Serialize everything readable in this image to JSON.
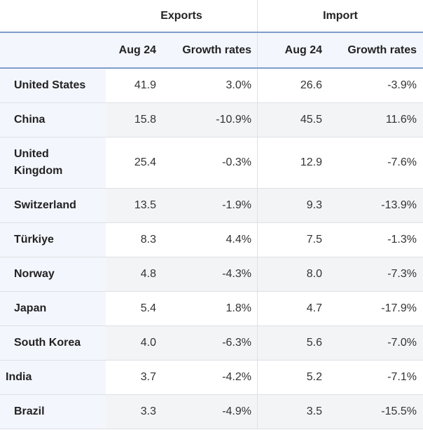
{
  "chart_data": {
    "type": "table",
    "column_groups": [
      "Exports",
      "Import"
    ],
    "columns": [
      "Aug 24",
      "Growth rates",
      "Aug 24",
      "Growth rates"
    ],
    "rows": [
      {
        "country": "United States",
        "exp_value": "41.9",
        "exp_growth": "3.0%",
        "imp_value": "26.6",
        "imp_growth": "-3.9%"
      },
      {
        "country": "China",
        "exp_value": "15.8",
        "exp_growth": "-10.9%",
        "imp_value": "45.5",
        "imp_growth": "11.6%"
      },
      {
        "country": "United Kingdom",
        "exp_value": "25.4",
        "exp_growth": "-0.3%",
        "imp_value": "12.9",
        "imp_growth": "-7.6%"
      },
      {
        "country": "Switzerland",
        "exp_value": "13.5",
        "exp_growth": "-1.9%",
        "imp_value": "9.3",
        "imp_growth": "-13.9%"
      },
      {
        "country": "Türkiye",
        "exp_value": "8.3",
        "exp_growth": "4.4%",
        "imp_value": "7.5",
        "imp_growth": "-1.3%"
      },
      {
        "country": "Norway",
        "exp_value": "4.8",
        "exp_growth": "-4.3%",
        "imp_value": "8.0",
        "imp_growth": "-7.3%"
      },
      {
        "country": "Japan",
        "exp_value": "5.4",
        "exp_growth": "1.8%",
        "imp_value": "4.7",
        "imp_growth": "-17.9%"
      },
      {
        "country": "South Korea",
        "exp_value": "4.0",
        "exp_growth": "-6.3%",
        "imp_value": "5.6",
        "imp_growth": "-7.0%"
      },
      {
        "country": "India",
        "exp_value": "3.7",
        "exp_growth": "-4.2%",
        "imp_value": "5.2",
        "imp_growth": "-7.1%"
      },
      {
        "country": "Brazil",
        "exp_value": "3.3",
        "exp_growth": "-4.9%",
        "imp_value": "3.5",
        "imp_growth": "-15.5%"
      }
    ]
  }
}
